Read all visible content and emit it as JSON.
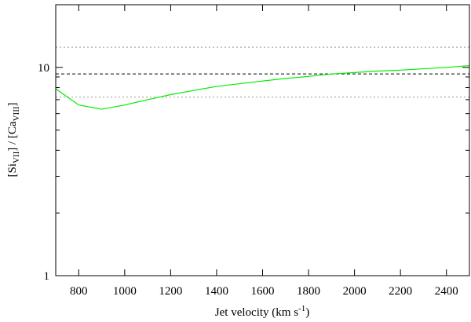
{
  "chart_data": {
    "type": "line",
    "title": "",
    "x_axis": {
      "label_main": "Jet velocity (km s",
      "label_sup": "-1",
      "label_end": ")",
      "range": [
        700,
        2500
      ],
      "ticks": [
        800,
        1000,
        1200,
        1400,
        1600,
        1800,
        2000,
        2200,
        2400
      ],
      "tick_labels": [
        "800",
        "1000",
        "1200",
        "1400",
        "1600",
        "1800",
        "2000",
        "2200",
        "2400"
      ]
    },
    "y_axis": {
      "scale": "log",
      "range": [
        1,
        20
      ],
      "major_ticks": [
        1,
        10
      ],
      "tick_labels": [
        "1",
        "10"
      ],
      "minor_ticks": [
        2,
        3,
        4,
        5,
        6,
        7,
        8,
        9,
        20
      ],
      "label_parts": [
        {
          "t": "[Si",
          "sub": false
        },
        {
          "t": "VII",
          "sub": true
        },
        {
          "t": "] / [Ca",
          "sub": false
        },
        {
          "t": "VIII",
          "sub": true
        },
        {
          "t": "]",
          "sub": false
        }
      ]
    },
    "grid": false,
    "legend": "none",
    "series": [
      {
        "color": "#00ee00",
        "style": "solid",
        "x": [
          700,
          800,
          900,
          1000,
          1100,
          1200,
          1300,
          1400,
          1500,
          1600,
          1700,
          1800,
          1900,
          2000,
          2100,
          2200,
          2300,
          2400,
          2500
        ],
        "y": [
          7.9,
          6.6,
          6.3,
          6.6,
          7.0,
          7.4,
          7.75,
          8.1,
          8.35,
          8.6,
          8.85,
          9.05,
          9.3,
          9.45,
          9.6,
          9.7,
          9.85,
          10.0,
          10.2
        ]
      }
    ],
    "reference_lines": [
      {
        "y": 12.5,
        "style": "dotted",
        "color": "#999999"
      },
      {
        "y": 9.3,
        "style": "dashed",
        "color": "#000000"
      },
      {
        "y": 7.2,
        "style": "dotted",
        "color": "#999999"
      }
    ]
  }
}
